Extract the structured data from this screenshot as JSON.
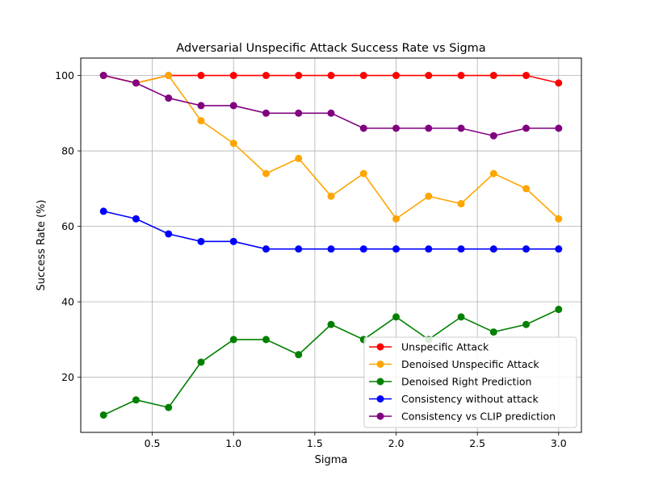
{
  "chart_data": {
    "type": "line",
    "title": "Adversarial Unspecific Attack Success Rate vs Sigma",
    "xlabel": "Sigma",
    "ylabel": "Success Rate (%)",
    "xlim": [
      0.06,
      3.14
    ],
    "ylim": [
      5.4,
      104.6
    ],
    "xticks": [
      0.5,
      1.0,
      1.5,
      2.0,
      2.5,
      3.0
    ],
    "xtick_labels": [
      "0.5",
      "1.0",
      "1.5",
      "2.0",
      "2.5",
      "3.0"
    ],
    "yticks": [
      20,
      40,
      60,
      80,
      100
    ],
    "ytick_labels": [
      "20",
      "40",
      "60",
      "80",
      "100"
    ],
    "grid": true,
    "legend_position": "lower-right",
    "x": [
      0.2,
      0.4,
      0.6,
      0.8,
      1.0,
      1.2,
      1.4,
      1.6,
      1.8,
      2.0,
      2.2,
      2.4,
      2.6,
      2.8,
      3.0
    ],
    "series": [
      {
        "name": "Unspecific Attack",
        "color": "#ff0000",
        "values": [
          100,
          98,
          100,
          100,
          100,
          100,
          100,
          100,
          100,
          100,
          100,
          100,
          100,
          100,
          98
        ]
      },
      {
        "name": "Denoised Unspecific Attack",
        "color": "#ffa500",
        "values": [
          100,
          98,
          100,
          88,
          82,
          74,
          78,
          68,
          74,
          62,
          68,
          66,
          74,
          70,
          62
        ]
      },
      {
        "name": "Denoised Right Prediction",
        "color": "#008000",
        "values": [
          10,
          14,
          12,
          24,
          30,
          30,
          26,
          34,
          30,
          36,
          30,
          36,
          32,
          34,
          38
        ]
      },
      {
        "name": "Consistency without attack",
        "color": "#0000ff",
        "values": [
          64,
          62,
          58,
          56,
          56,
          54,
          54,
          54,
          54,
          54,
          54,
          54,
          54,
          54,
          54
        ]
      },
      {
        "name": "Consistency vs CLIP prediction",
        "color": "#800080",
        "values": [
          100,
          98,
          94,
          92,
          92,
          90,
          90,
          90,
          86,
          86,
          86,
          86,
          84,
          86,
          86
        ]
      }
    ]
  }
}
